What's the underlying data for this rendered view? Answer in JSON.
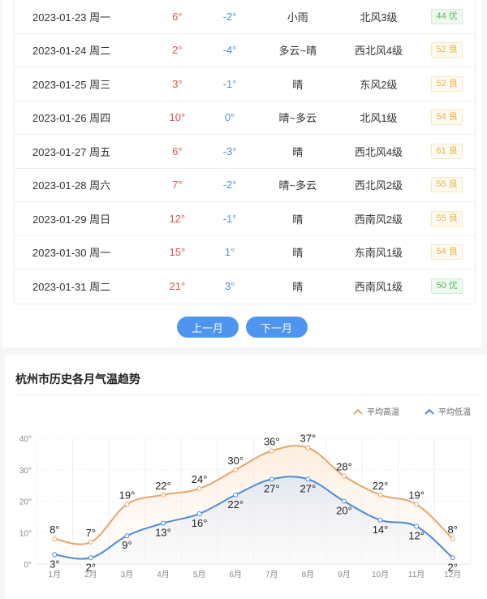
{
  "table": {
    "rows": [
      {
        "date": "2023-01-23 周一",
        "high": "6°",
        "low": "-2°",
        "weather": "小雨",
        "wind": "北风3级",
        "aqi": "44 优",
        "aqi_level": "good"
      },
      {
        "date": "2023-01-24 周二",
        "high": "2°",
        "low": "-4°",
        "weather": "多云~晴",
        "wind": "西北风4级",
        "aqi": "52 良",
        "aqi_level": "fair"
      },
      {
        "date": "2023-01-25 周三",
        "high": "3°",
        "low": "-1°",
        "weather": "晴",
        "wind": "东风2级",
        "aqi": "52 良",
        "aqi_level": "fair"
      },
      {
        "date": "2023-01-26 周四",
        "high": "10°",
        "low": "0°",
        "weather": "晴~多云",
        "wind": "北风1级",
        "aqi": "54 良",
        "aqi_level": "fair"
      },
      {
        "date": "2023-01-27 周五",
        "high": "6°",
        "low": "-3°",
        "weather": "晴",
        "wind": "西北风4级",
        "aqi": "61 良",
        "aqi_level": "fair"
      },
      {
        "date": "2023-01-28 周六",
        "high": "7°",
        "low": "-2°",
        "weather": "晴~多云",
        "wind": "西北风2级",
        "aqi": "55 良",
        "aqi_level": "fair"
      },
      {
        "date": "2023-01-29 周日",
        "high": "12°",
        "low": "-1°",
        "weather": "晴",
        "wind": "西南风2级",
        "aqi": "55 良",
        "aqi_level": "fair"
      },
      {
        "date": "2023-01-30 周一",
        "high": "15°",
        "low": "1°",
        "weather": "晴",
        "wind": "东南风1级",
        "aqi": "54 良",
        "aqi_level": "fair"
      },
      {
        "date": "2023-01-31 周二",
        "high": "21°",
        "low": "3°",
        "weather": "晴",
        "wind": "西南风1级",
        "aqi": "50 优",
        "aqi_level": "good"
      }
    ]
  },
  "pager": {
    "prev_label": "上一月",
    "next_label": "下一月"
  },
  "chart_section": {
    "title": "杭州市历史各月气温趋势"
  },
  "colors": {
    "high": "#e8a46a",
    "low": "#4a8ad8",
    "button": "#4e95f0",
    "aqi_good": "#5cb85c",
    "aqi_fair": "#e0b34f"
  },
  "chart_data": {
    "type": "line",
    "title": "杭州市历史各月气温趋势",
    "categories": [
      "1月",
      "2月",
      "3月",
      "4月",
      "5月",
      "6月",
      "7月",
      "8月",
      "9月",
      "10月",
      "11月",
      "12月"
    ],
    "series": [
      {
        "name": "平均高温",
        "values": [
          8,
          7,
          19,
          22,
          24,
          30,
          36,
          37,
          28,
          22,
          19,
          8
        ]
      },
      {
        "name": "平均低温",
        "values": [
          3,
          2,
          9,
          13,
          16,
          22,
          27,
          27,
          20,
          14,
          12,
          2
        ]
      }
    ],
    "y_ticks": [
      "0°",
      "10°",
      "20°",
      "30°",
      "40°"
    ],
    "ylim": [
      0,
      40
    ],
    "xlabel": "",
    "ylabel": "",
    "grid": true,
    "legend_position": "top-right",
    "smooth": true,
    "area_fill": true
  }
}
